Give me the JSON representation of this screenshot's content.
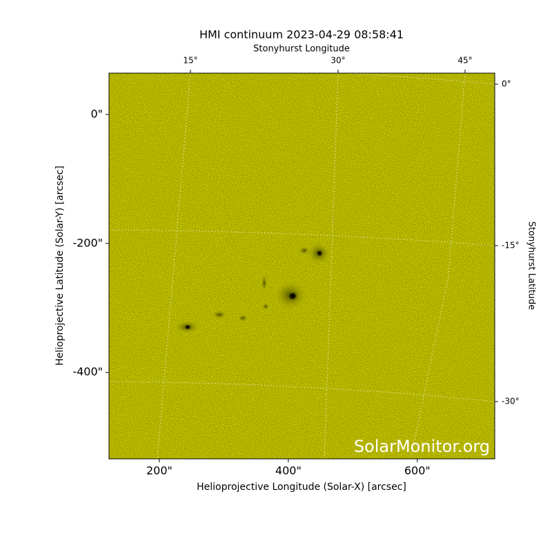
{
  "chart_data": {
    "type": "image",
    "title": "HMI continuum 2023-04-29 08:58:41",
    "x_label": "Helioprojective Longitude (Solar-X) [arcsec]",
    "y_label": "Helioprojective Latitude (Solar-Y) [arcsec]",
    "x2_label": "Stonyhurst Longitude",
    "y2_label": "Stonyhurst Latitude",
    "xlim": [
      122,
      720
    ],
    "ylim": [
      -534,
      64
    ],
    "xticks": [
      {
        "value": 200,
        "label": "200\""
      },
      {
        "value": 400,
        "label": "400\""
      },
      {
        "value": 600,
        "label": "600\""
      }
    ],
    "yticks": [
      {
        "value": 0,
        "label": "0\""
      },
      {
        "value": -200,
        "label": "-200\""
      },
      {
        "value": -400,
        "label": "-400\""
      }
    ],
    "x2ticks": [
      {
        "value": 15,
        "label": "15°"
      },
      {
        "value": 30,
        "label": "30°"
      },
      {
        "value": 45,
        "label": "45°"
      }
    ],
    "y2ticks": [
      {
        "value": 0,
        "label": "0°"
      },
      {
        "value": -15,
        "label": "-15°"
      },
      {
        "value": -30,
        "label": "-30°"
      }
    ],
    "watermark": "SolarMonitor.org",
    "color": "#c9c900"
  }
}
